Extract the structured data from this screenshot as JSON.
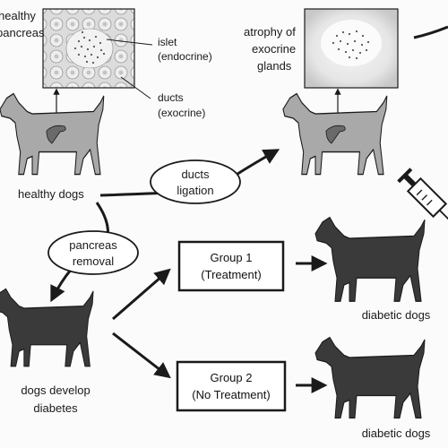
{
  "labels": {
    "healthy_pancreas_line1": "healthy",
    "healthy_pancreas_line2": "pancreas",
    "islet_line1": "islet",
    "islet_line2": "(endocrine)",
    "ducts_line1": "ducts",
    "ducts_line2": "(exocrine)",
    "atrophy_line1": "atrophy of",
    "atrophy_line2": "exocrine",
    "atrophy_line3": "glands",
    "healthy_dogs": "healthy dogs",
    "ducts_ligation_line1": "ducts",
    "ducts_ligation_line2": "ligation",
    "pancreas_removal_line1": "pancreas",
    "pancreas_removal_line2": "removal",
    "dogs_develop_line1": "dogs develop",
    "dogs_develop_line2": "diabetes",
    "diabetic_dogs_1": "diabetic dogs",
    "diabetic_dogs_2": "diabetic dogs"
  },
  "groups": [
    {
      "line1": "Group 1",
      "line2": "(Treatment)"
    },
    {
      "line1": "Group 2",
      "line2": "(No Treatment)"
    }
  ],
  "colors": {
    "healthy_dog_fill": "#a9a9a9",
    "diabetic_dog_fill": "#3a3a3a",
    "outline": "#1a1a1a",
    "background": "#fbfbfb"
  },
  "icons": {
    "syringe": "syringe-icon",
    "pancreas": "pancreas-icon"
  }
}
